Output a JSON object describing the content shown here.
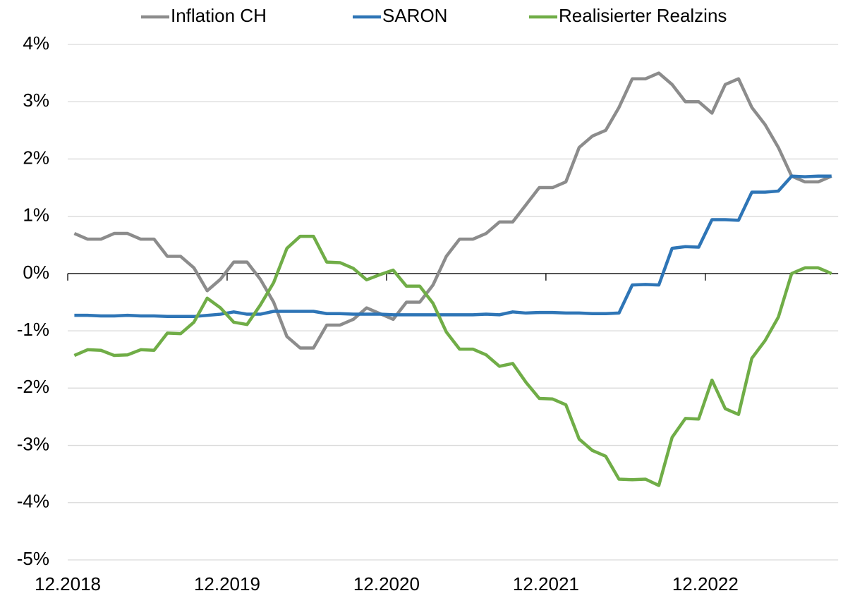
{
  "chart_data": {
    "type": "line",
    "categories": [
      "12.2018",
      null,
      null,
      null,
      null,
      null,
      null,
      null,
      null,
      null,
      null,
      null,
      "12.2019",
      null,
      null,
      null,
      null,
      null,
      null,
      null,
      null,
      null,
      null,
      null,
      "12.2020",
      null,
      null,
      null,
      null,
      null,
      null,
      null,
      null,
      null,
      null,
      null,
      "12.2021",
      null,
      null,
      null,
      null,
      null,
      null,
      null,
      null,
      null,
      null,
      null,
      "12.2022",
      null,
      null,
      null,
      null,
      null,
      null,
      null,
      null,
      null
    ],
    "series": [
      {
        "name": "Inflation CH",
        "color": "#8c8c8c",
        "values": [
          0.7,
          0.6,
          0.6,
          0.7,
          0.7,
          0.6,
          0.6,
          0.3,
          0.3,
          0.1,
          -0.3,
          -0.1,
          0.2,
          0.2,
          -0.1,
          -0.5,
          -1.1,
          -1.3,
          -1.3,
          -0.9,
          -0.9,
          -0.8,
          -0.6,
          -0.7,
          -0.8,
          -0.5,
          -0.5,
          -0.2,
          0.3,
          0.6,
          0.6,
          0.7,
          0.9,
          0.9,
          1.2,
          1.5,
          1.5,
          1.6,
          2.2,
          2.4,
          2.5,
          2.9,
          3.4,
          3.4,
          3.5,
          3.3,
          3.0,
          3.0,
          2.8,
          3.3,
          3.4,
          2.9,
          2.6,
          2.2,
          1.7,
          1.6,
          1.6,
          1.7
        ]
      },
      {
        "name": "SARON",
        "color": "#2e75b6",
        "values": [
          -0.73,
          -0.73,
          -0.74,
          -0.74,
          -0.73,
          -0.74,
          -0.74,
          -0.75,
          -0.75,
          -0.75,
          -0.73,
          -0.71,
          -0.67,
          -0.71,
          -0.71,
          -0.66,
          -0.66,
          -0.66,
          -0.66,
          -0.7,
          -0.7,
          -0.71,
          -0.71,
          -0.71,
          -0.72,
          -0.72,
          -0.72,
          -0.72,
          -0.72,
          -0.72,
          -0.72,
          -0.71,
          -0.72,
          -0.67,
          -0.69,
          -0.68,
          -0.68,
          -0.69,
          -0.69,
          -0.7,
          -0.7,
          -0.69,
          -0.2,
          -0.19,
          -0.2,
          0.44,
          0.47,
          0.46,
          0.94,
          0.94,
          0.93,
          1.42,
          1.42,
          1.44,
          1.7,
          1.69,
          1.7,
          1.7
        ]
      },
      {
        "name": "Realisierter Realzins",
        "color": "#70ad47",
        "values": [
          -1.43,
          -1.33,
          -1.34,
          -1.43,
          -1.42,
          -1.33,
          -1.34,
          -1.04,
          -1.05,
          -0.85,
          -0.43,
          -0.6,
          -0.85,
          -0.89,
          -0.55,
          -0.16,
          0.44,
          0.65,
          0.65,
          0.2,
          0.19,
          0.09,
          -0.11,
          -0.02,
          0.06,
          -0.22,
          -0.22,
          -0.52,
          -1.02,
          -1.32,
          -1.32,
          -1.42,
          -1.62,
          -1.57,
          -1.9,
          -2.18,
          -2.19,
          -2.29,
          -2.89,
          -3.09,
          -3.19,
          -3.59,
          -3.6,
          -3.59,
          -3.7,
          -2.86,
          -2.53,
          -2.54,
          -1.86,
          -2.36,
          -2.46,
          -1.48,
          -1.17,
          -0.76,
          0.0,
          0.1,
          0.1,
          0.0
        ]
      }
    ],
    "ylim": [
      -5,
      4
    ],
    "yticks": [
      {
        "value": -5,
        "label": "-5%"
      },
      {
        "value": -4,
        "label": "-4%"
      },
      {
        "value": -3,
        "label": "-3%"
      },
      {
        "value": -2,
        "label": "-2%"
      },
      {
        "value": -1,
        "label": "-1%"
      },
      {
        "value": 0,
        "label": "0%"
      },
      {
        "value": 1,
        "label": "1%"
      },
      {
        "value": 2,
        "label": "2%"
      },
      {
        "value": 3,
        "label": "3%"
      },
      {
        "value": 4,
        "label": "4%"
      }
    ],
    "grid": true,
    "legend": "top"
  }
}
